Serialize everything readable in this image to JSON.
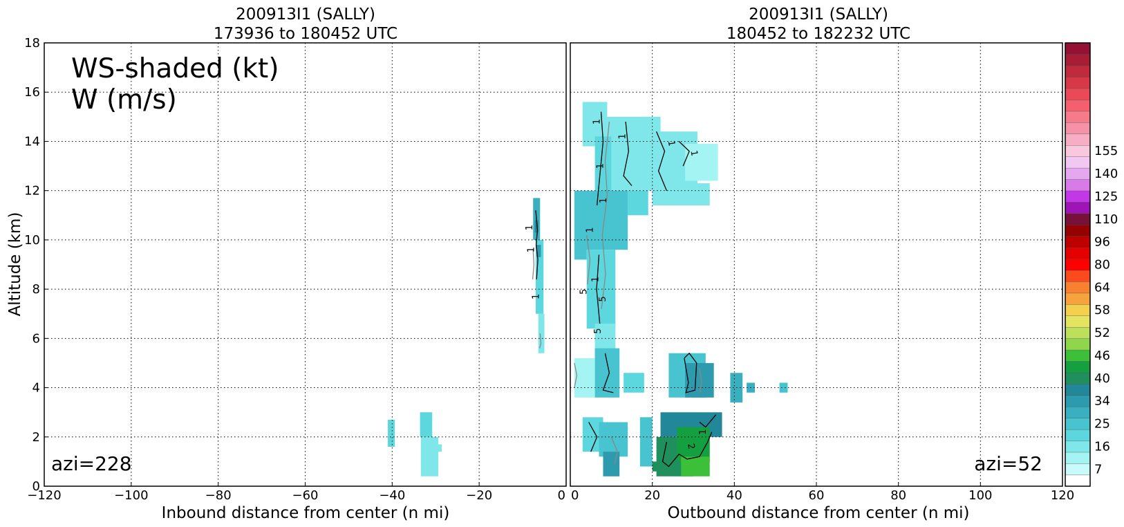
{
  "chart_data": [
    {
      "type": "heatmap",
      "title": "200913I1 (SALLY)",
      "subtitle": "173936 to 180452 UTC",
      "xlabel": "Inbound distance from center (n mi)",
      "ylabel": "Altitude (km)",
      "xlim": [
        -120,
        0
      ],
      "ylim": [
        0,
        18
      ],
      "xticks": [
        "−120",
        "−100",
        "−80",
        "−60",
        "−40",
        "−20",
        "0"
      ],
      "yticks": [
        "0",
        "2",
        "4",
        "6",
        "8",
        "10",
        "12",
        "14",
        "16",
        "18"
      ],
      "grid": true,
      "annotation_main": "WS-shaded (kt)",
      "annotation_sub": "W (m/s)",
      "azimuth_label": "azi=228",
      "contour_labels": [
        "1",
        "1",
        "1"
      ],
      "cells": [
        {
          "x0": -7.6,
          "x1": -6.0,
          "y0": 10.0,
          "y1": 11.7,
          "ws": 28
        },
        {
          "x0": -7.2,
          "x1": -6.4,
          "y0": 10.3,
          "y1": 10.8,
          "ws": 36
        },
        {
          "x0": -7.0,
          "x1": -5.2,
          "y0": 7.0,
          "y1": 10.0,
          "ws": 22
        },
        {
          "x0": -6.8,
          "x1": -5.8,
          "y0": 9.3,
          "y1": 9.8,
          "ws": 34
        },
        {
          "x0": -6.4,
          "x1": -5.0,
          "y0": 5.4,
          "y1": 7.0,
          "ws": 16
        },
        {
          "x0": -41.0,
          "x1": -39.4,
          "y0": 1.6,
          "y1": 2.7,
          "ws": 22
        },
        {
          "x0": -33.6,
          "x1": -30.8,
          "y0": 2.0,
          "y1": 3.0,
          "ws": 21
        },
        {
          "x0": -33.4,
          "x1": -29.4,
          "y0": 0.4,
          "y1": 2.0,
          "ws": 17
        },
        {
          "x0": -29.6,
          "x1": -28.6,
          "y0": 1.4,
          "y1": 1.7,
          "ws": 16
        }
      ]
    },
    {
      "type": "heatmap",
      "title": "200913I1 (SALLY)",
      "subtitle": "180452 to 182232 UTC",
      "xlabel": "Outbound distance from center (n mi)",
      "ylabel": "",
      "xlim": [
        0,
        120
      ],
      "ylim": [
        0,
        18
      ],
      "xticks": [
        "0",
        "20",
        "40",
        "60",
        "80",
        "100",
        "120"
      ],
      "yticks": [],
      "grid": true,
      "azimuth_label": "azi=52",
      "contour_labels": [
        "1",
        "1",
        "1",
        "1",
        "1",
        "1",
        "1",
        "1",
        "5",
        "5",
        "5",
        "2",
        "1"
      ],
      "cells": [
        {
          "x0": 3.0,
          "x1": 9.0,
          "y0": 13.8,
          "y1": 15.6,
          "ws": 15
        },
        {
          "x0": 9.0,
          "x1": 22.0,
          "y0": 12.0,
          "y1": 15.0,
          "ws": 16
        },
        {
          "x0": 22.0,
          "x1": 31.0,
          "y0": 12.2,
          "y1": 14.4,
          "ws": 16
        },
        {
          "x0": 28.0,
          "x1": 36.0,
          "y0": 12.4,
          "y1": 13.9,
          "ws": 11
        },
        {
          "x0": 20.0,
          "x1": 34.0,
          "y0": 11.4,
          "y1": 12.3,
          "ws": 15
        },
        {
          "x0": 6.0,
          "x1": 10.0,
          "y0": 11.8,
          "y1": 14.2,
          "ws": 19
        },
        {
          "x0": 1.0,
          "x1": 14.0,
          "y0": 9.6,
          "y1": 12.0,
          "ws": 24
        },
        {
          "x0": 14.0,
          "x1": 19.0,
          "y0": 11.0,
          "y1": 12.0,
          "ws": 22
        },
        {
          "x0": 1.0,
          "x1": 4.0,
          "y0": 9.2,
          "y1": 10.6,
          "ws": 23
        },
        {
          "x0": 4.0,
          "x1": 11.0,
          "y0": 6.4,
          "y1": 9.6,
          "ws": 22
        },
        {
          "x0": 6.0,
          "x1": 11.0,
          "y0": 5.2,
          "y1": 6.6,
          "ws": 16
        },
        {
          "x0": 1.0,
          "x1": 6.0,
          "y0": 3.6,
          "y1": 5.2,
          "ws": 13
        },
        {
          "x0": 6.0,
          "x1": 12.0,
          "y0": 3.6,
          "y1": 5.6,
          "ws": 24
        },
        {
          "x0": 13.0,
          "x1": 18.0,
          "y0": 3.8,
          "y1": 4.6,
          "ws": 22
        },
        {
          "x0": 24.0,
          "x1": 33.0,
          "y0": 3.6,
          "y1": 5.4,
          "ws": 25
        },
        {
          "x0": 28.0,
          "x1": 35.0,
          "y0": 3.6,
          "y1": 5.0,
          "ws": 34
        },
        {
          "x0": 39.0,
          "x1": 42.0,
          "y0": 3.4,
          "y1": 4.6,
          "ws": 30
        },
        {
          "x0": 43.0,
          "x1": 45.0,
          "y0": 3.8,
          "y1": 4.2,
          "ws": 30
        },
        {
          "x0": 51.0,
          "x1": 53.0,
          "y0": 3.8,
          "y1": 4.2,
          "ws": 24
        },
        {
          "x0": 3.0,
          "x1": 8.0,
          "y0": 1.4,
          "y1": 2.8,
          "ws": 22
        },
        {
          "x0": 7.0,
          "x1": 14.0,
          "y0": 1.2,
          "y1": 2.6,
          "ws": 24
        },
        {
          "x0": 8.0,
          "x1": 12.0,
          "y0": 0.4,
          "y1": 1.4,
          "ws": 34
        },
        {
          "x0": 17.0,
          "x1": 20.0,
          "y0": 0.8,
          "y1": 2.8,
          "ws": 24
        },
        {
          "x0": 22.0,
          "x1": 37.0,
          "y0": 2.0,
          "y1": 3.0,
          "ws": 38
        },
        {
          "x0": 21.0,
          "x1": 30.0,
          "y0": 0.4,
          "y1": 2.0,
          "ws": 40
        },
        {
          "x0": 26.0,
          "x1": 34.0,
          "y0": 1.0,
          "y1": 2.4,
          "ws": 46
        },
        {
          "x0": 27.0,
          "x1": 34.0,
          "y0": 0.4,
          "y1": 1.2,
          "ws": 50
        },
        {
          "x0": 20.0,
          "x1": 23.0,
          "y0": 0.6,
          "y1": 1.0,
          "ws": 42
        }
      ]
    }
  ],
  "colorbar": {
    "tick_labels": [
      "155",
      "140",
      "125",
      "110",
      "96",
      "80",
      "64",
      "58",
      "52",
      "46",
      "40",
      "34",
      "25",
      "16",
      "7"
    ],
    "colors": [
      "#ffffff",
      "#c9fbfb",
      "#a4f4f4",
      "#7fe7ea",
      "#5cd7de",
      "#47c4cf",
      "#3aafbf",
      "#2e9aad",
      "#228798",
      "#1f8f5e",
      "#14a040",
      "#3cc03a",
      "#8fd64c",
      "#bde05c",
      "#e3e560",
      "#f3d14e",
      "#f6a33e",
      "#f8812f",
      "#fb4a1c",
      "#ff0000",
      "#e40000",
      "#bd0000",
      "#950000",
      "#77113a",
      "#9d14b7",
      "#c238e6",
      "#d87ae8",
      "#e4a8ee",
      "#f2c8f2",
      "#f9c8dc",
      "#f7aec4",
      "#f592a8",
      "#f57a8a",
      "#f4606e",
      "#ea4a57",
      "#d63848",
      "#c02a3d",
      "#a81d36",
      "#931233"
    ]
  }
}
